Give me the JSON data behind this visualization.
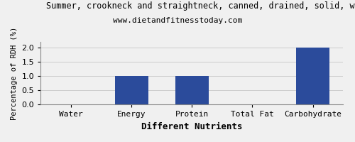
{
  "title": "Summer, crookneck and straightneck, canned, drained, solid, without salt",
  "subtitle": "www.dietandfitnesstoday.com",
  "categories": [
    "Water",
    "Energy",
    "Protein",
    "Total Fat",
    "Carbohydrate"
  ],
  "values": [
    0.0,
    1.0,
    1.0,
    0.0,
    2.0
  ],
  "bar_color": "#2b4b9b",
  "xlabel": "Different Nutrients",
  "ylabel": "Percentage of RDH (%)",
  "ylim": [
    0,
    2.2
  ],
  "yticks": [
    0.0,
    0.5,
    1.0,
    1.5,
    2.0
  ],
  "background_color": "#f0f0f0",
  "plot_bg_color": "#f0f0f0",
  "grid_color": "#cccccc",
  "title_fontsize": 8.5,
  "subtitle_fontsize": 8,
  "xlabel_fontsize": 9,
  "ylabel_fontsize": 7.5,
  "tick_fontsize": 8
}
